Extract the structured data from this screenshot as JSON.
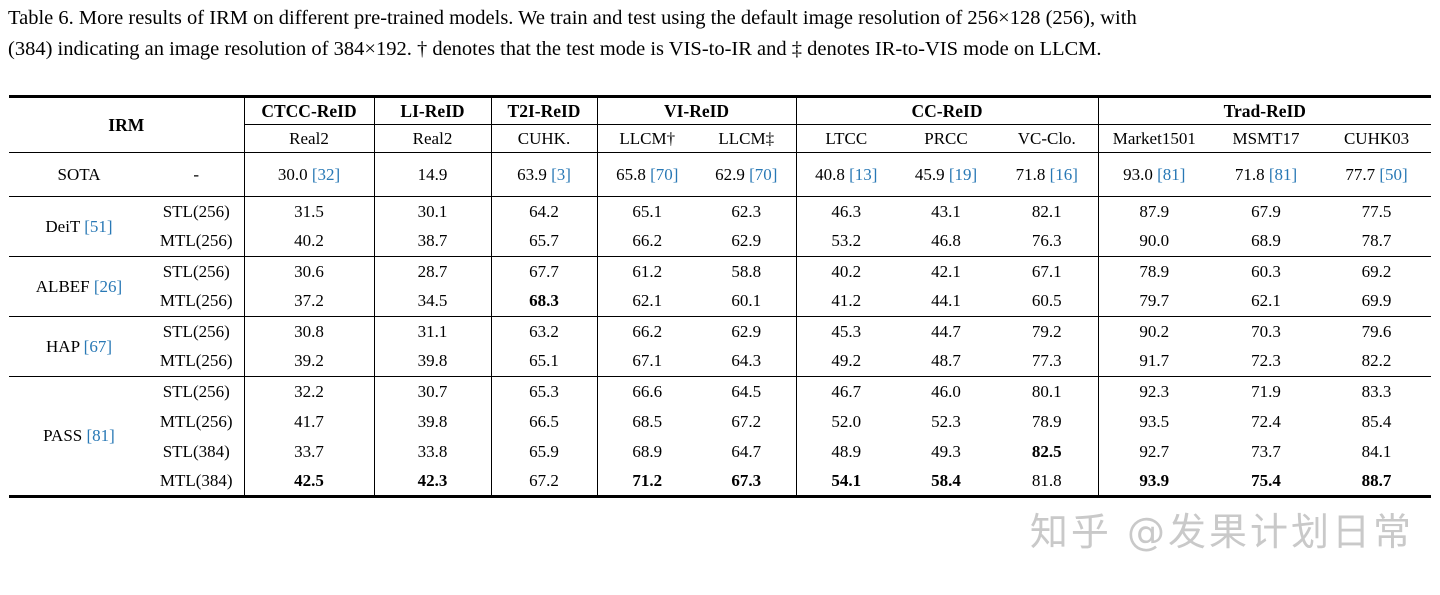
{
  "caption": {
    "line1": "Table 6. More results of IRM on different pre-trained models. We train and test using the default image resolution of 256×128 (256), with",
    "line2": "(384) indicating an image resolution of 384×192. † denotes that the test mode is VIS-to-IR and ‡ denotes IR-to-VIS mode on LLCM."
  },
  "watermark": "知乎 @发果计划日常",
  "colors": {
    "citation_blue": "#2878b5",
    "text": "#000000",
    "watermark_gray": "#c9c9c9"
  },
  "table": {
    "irm_header": "IRM",
    "groups_header": [
      {
        "label": "CTCC-ReID",
        "subs": [
          "Real2"
        ]
      },
      {
        "label": "LI-ReID",
        "subs": [
          "Real2"
        ]
      },
      {
        "label": "T2I-ReID",
        "subs": [
          "CUHK."
        ]
      },
      {
        "label": "VI-ReID",
        "subs": [
          "LLCM†",
          "LLCM‡"
        ]
      },
      {
        "label": "CC-ReID",
        "subs": [
          "LTCC",
          "PRCC",
          "VC-Clo."
        ]
      },
      {
        "label": "Trad-ReID",
        "subs": [
          "Market1501",
          "MSMT17",
          "CUHK03"
        ]
      }
    ],
    "sota": {
      "name": "SOTA",
      "setting": "-",
      "values": [
        {
          "v": "30.0",
          "cite": "[32]"
        },
        {
          "v": "14.9",
          "cite": ""
        },
        {
          "v": "63.9",
          "cite": "[3]"
        },
        {
          "v": "65.8",
          "cite": "[70]"
        },
        {
          "v": "62.9",
          "cite": "[70]"
        },
        {
          "v": "40.8",
          "cite": "[13]"
        },
        {
          "v": "45.9",
          "cite": "[19]"
        },
        {
          "v": "71.8",
          "cite": "[16]"
        },
        {
          "v": "93.0",
          "cite": "[81]"
        },
        {
          "v": "71.8",
          "cite": "[81]"
        },
        {
          "v": "77.7",
          "cite": "[50]"
        }
      ]
    },
    "model_groups": [
      {
        "name": "DeiT",
        "cite": "[51]",
        "rows": [
          {
            "setting": "STL(256)",
            "values": [
              "31.5",
              "30.1",
              "64.2",
              "65.1",
              "62.3",
              "46.3",
              "43.1",
              "82.1",
              "87.9",
              "67.9",
              "77.5"
            ],
            "bold": []
          },
          {
            "setting": "MTL(256)",
            "values": [
              "40.2",
              "38.7",
              "65.7",
              "66.2",
              "62.9",
              "53.2",
              "46.8",
              "76.3",
              "90.0",
              "68.9",
              "78.7"
            ],
            "bold": []
          }
        ]
      },
      {
        "name": "ALBEF",
        "cite": "[26]",
        "rows": [
          {
            "setting": "STL(256)",
            "values": [
              "30.6",
              "28.7",
              "67.7",
              "61.2",
              "58.8",
              "40.2",
              "42.1",
              "67.1",
              "78.9",
              "60.3",
              "69.2"
            ],
            "bold": []
          },
          {
            "setting": "MTL(256)",
            "values": [
              "37.2",
              "34.5",
              "68.3",
              "62.1",
              "60.1",
              "41.2",
              "44.1",
              "60.5",
              "79.7",
              "62.1",
              "69.9"
            ],
            "bold": [
              2
            ]
          }
        ]
      },
      {
        "name": "HAP",
        "cite": "[67]",
        "rows": [
          {
            "setting": "STL(256)",
            "values": [
              "30.8",
              "31.1",
              "63.2",
              "66.2",
              "62.9",
              "45.3",
              "44.7",
              "79.2",
              "90.2",
              "70.3",
              "79.6"
            ],
            "bold": []
          },
          {
            "setting": "MTL(256)",
            "values": [
              "39.2",
              "39.8",
              "65.1",
              "67.1",
              "64.3",
              "49.2",
              "48.7",
              "77.3",
              "91.7",
              "72.3",
              "82.2"
            ],
            "bold": []
          }
        ]
      },
      {
        "name": "PASS",
        "cite": "[81]",
        "rows": [
          {
            "setting": "STL(256)",
            "values": [
              "32.2",
              "30.7",
              "65.3",
              "66.6",
              "64.5",
              "46.7",
              "46.0",
              "80.1",
              "92.3",
              "71.9",
              "83.3"
            ],
            "bold": []
          },
          {
            "setting": "MTL(256)",
            "values": [
              "41.7",
              "39.8",
              "66.5",
              "68.5",
              "67.2",
              "52.0",
              "52.3",
              "78.9",
              "93.5",
              "72.4",
              "85.4"
            ],
            "bold": []
          },
          {
            "setting": "STL(384)",
            "values": [
              "33.7",
              "33.8",
              "65.9",
              "68.9",
              "64.7",
              "48.9",
              "49.3",
              "82.5",
              "92.7",
              "73.7",
              "84.1"
            ],
            "bold": [
              7
            ]
          },
          {
            "setting": "MTL(384)",
            "values": [
              "42.5",
              "42.3",
              "67.2",
              "71.2",
              "67.3",
              "54.1",
              "58.4",
              "81.8",
              "93.9",
              "75.4",
              "88.7"
            ],
            "bold": [
              0,
              1,
              3,
              4,
              5,
              6,
              8,
              9,
              10
            ]
          }
        ]
      }
    ]
  }
}
